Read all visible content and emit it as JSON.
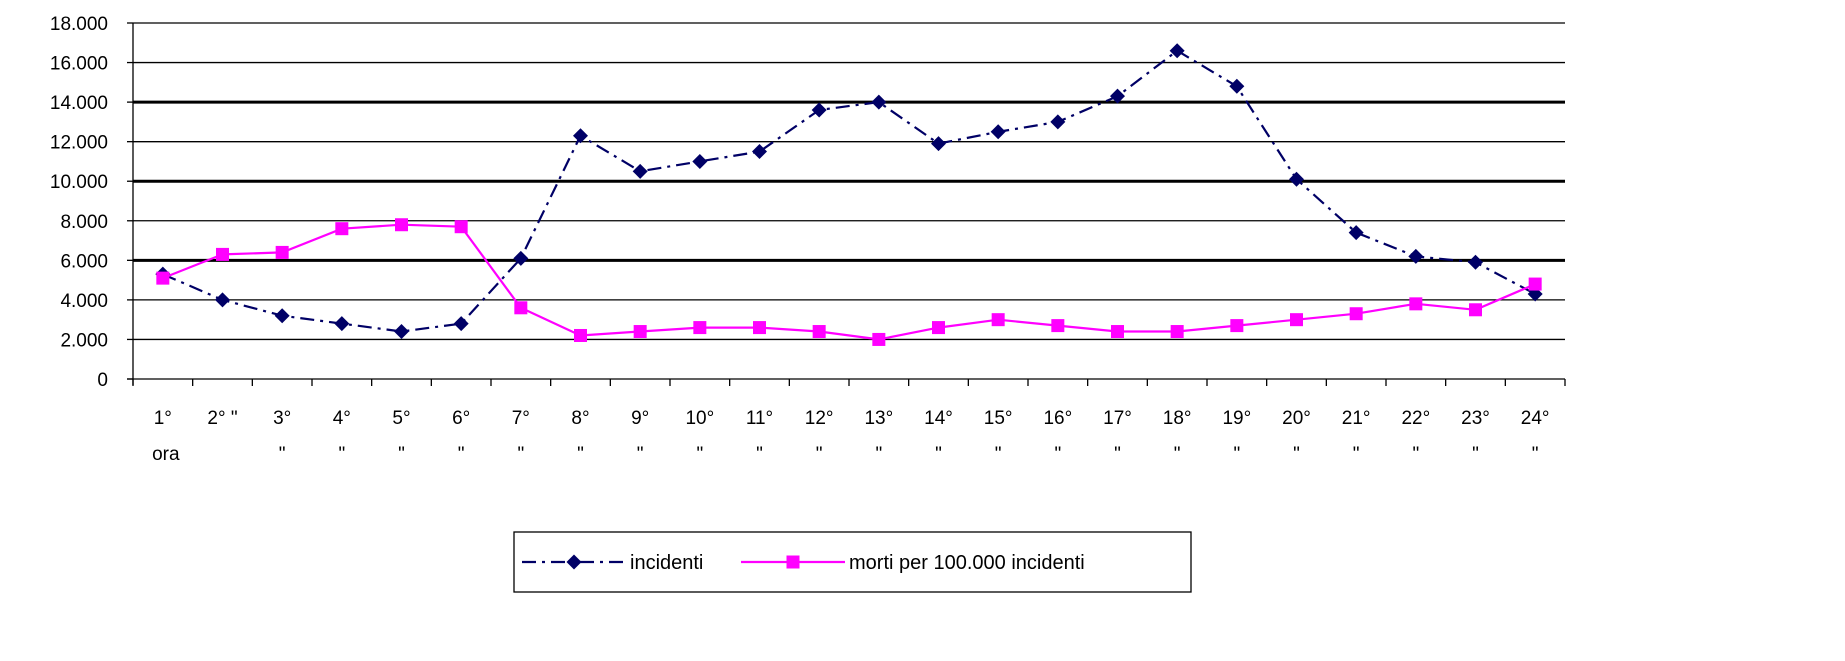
{
  "chart_data": {
    "type": "line",
    "title": "",
    "xlabel": "",
    "ylabel": "",
    "ylim": [
      0,
      18000
    ],
    "y_ticks": [
      0,
      2000,
      4000,
      6000,
      8000,
      10000,
      12000,
      14000,
      16000,
      18000
    ],
    "y_tick_labels": [
      "0",
      "2.000",
      "4.000",
      "6.000",
      "8.000",
      "10.000",
      "12.000",
      "14.000",
      "16.000",
      "18.000"
    ],
    "categories": [
      "1° ora",
      "2° \"",
      "3° \"",
      "4° \"",
      "5° \"",
      "6° \"",
      "7° \"",
      "8° \"",
      "9° \"",
      "10° \"",
      "11° \"",
      "12° \"",
      "13° \"",
      "14° \"",
      "15° \"",
      "16° \"",
      "17° \"",
      "18° \"",
      "19° \"",
      "20° \"",
      "21° \"",
      "22° \"",
      "23° \"",
      "24° \""
    ],
    "category_labels": [
      [
        "1°",
        "ora"
      ],
      [
        "2° \"",
        ""
      ],
      [
        "3°",
        "\""
      ],
      [
        "4°",
        "\""
      ],
      [
        "5°",
        "\""
      ],
      [
        "6°",
        "\""
      ],
      [
        "7°",
        "\""
      ],
      [
        "8°",
        "\""
      ],
      [
        "9°",
        "\""
      ],
      [
        "10°",
        "\""
      ],
      [
        "11°",
        "\""
      ],
      [
        "12°",
        "\""
      ],
      [
        "13°",
        "\""
      ],
      [
        "14°",
        "\""
      ],
      [
        "15°",
        "\""
      ],
      [
        "16°",
        "\""
      ],
      [
        "17°",
        "\""
      ],
      [
        "18°",
        "\""
      ],
      [
        "19°",
        "\""
      ],
      [
        "20°",
        "\""
      ],
      [
        "21°",
        "\""
      ],
      [
        "22°",
        "\""
      ],
      [
        "23°",
        "\""
      ],
      [
        "24°",
        "\""
      ]
    ],
    "grid": true,
    "legend_position": "bottom",
    "series": [
      {
        "name": "incidenti",
        "color": "#000066",
        "marker": "diamond",
        "line_style": "dash-dot",
        "values": [
          5300,
          4000,
          3200,
          2800,
          2400,
          2800,
          6100,
          12300,
          10500,
          11000,
          11500,
          13600,
          14000,
          11900,
          12500,
          13000,
          14300,
          16600,
          14800,
          10100,
          7400,
          6200,
          5900,
          4300
        ]
      },
      {
        "name": "morti per 100.000 incidenti",
        "color": "#ff00ff",
        "marker": "square",
        "line_style": "solid",
        "values": [
          5100,
          6300,
          6400,
          7600,
          7800,
          7700,
          3600,
          2200,
          2400,
          2600,
          2600,
          2400,
          2000,
          2600,
          3000,
          2700,
          2400,
          2400,
          2700,
          3000,
          3300,
          3800,
          3500,
          4800
        ]
      }
    ]
  }
}
